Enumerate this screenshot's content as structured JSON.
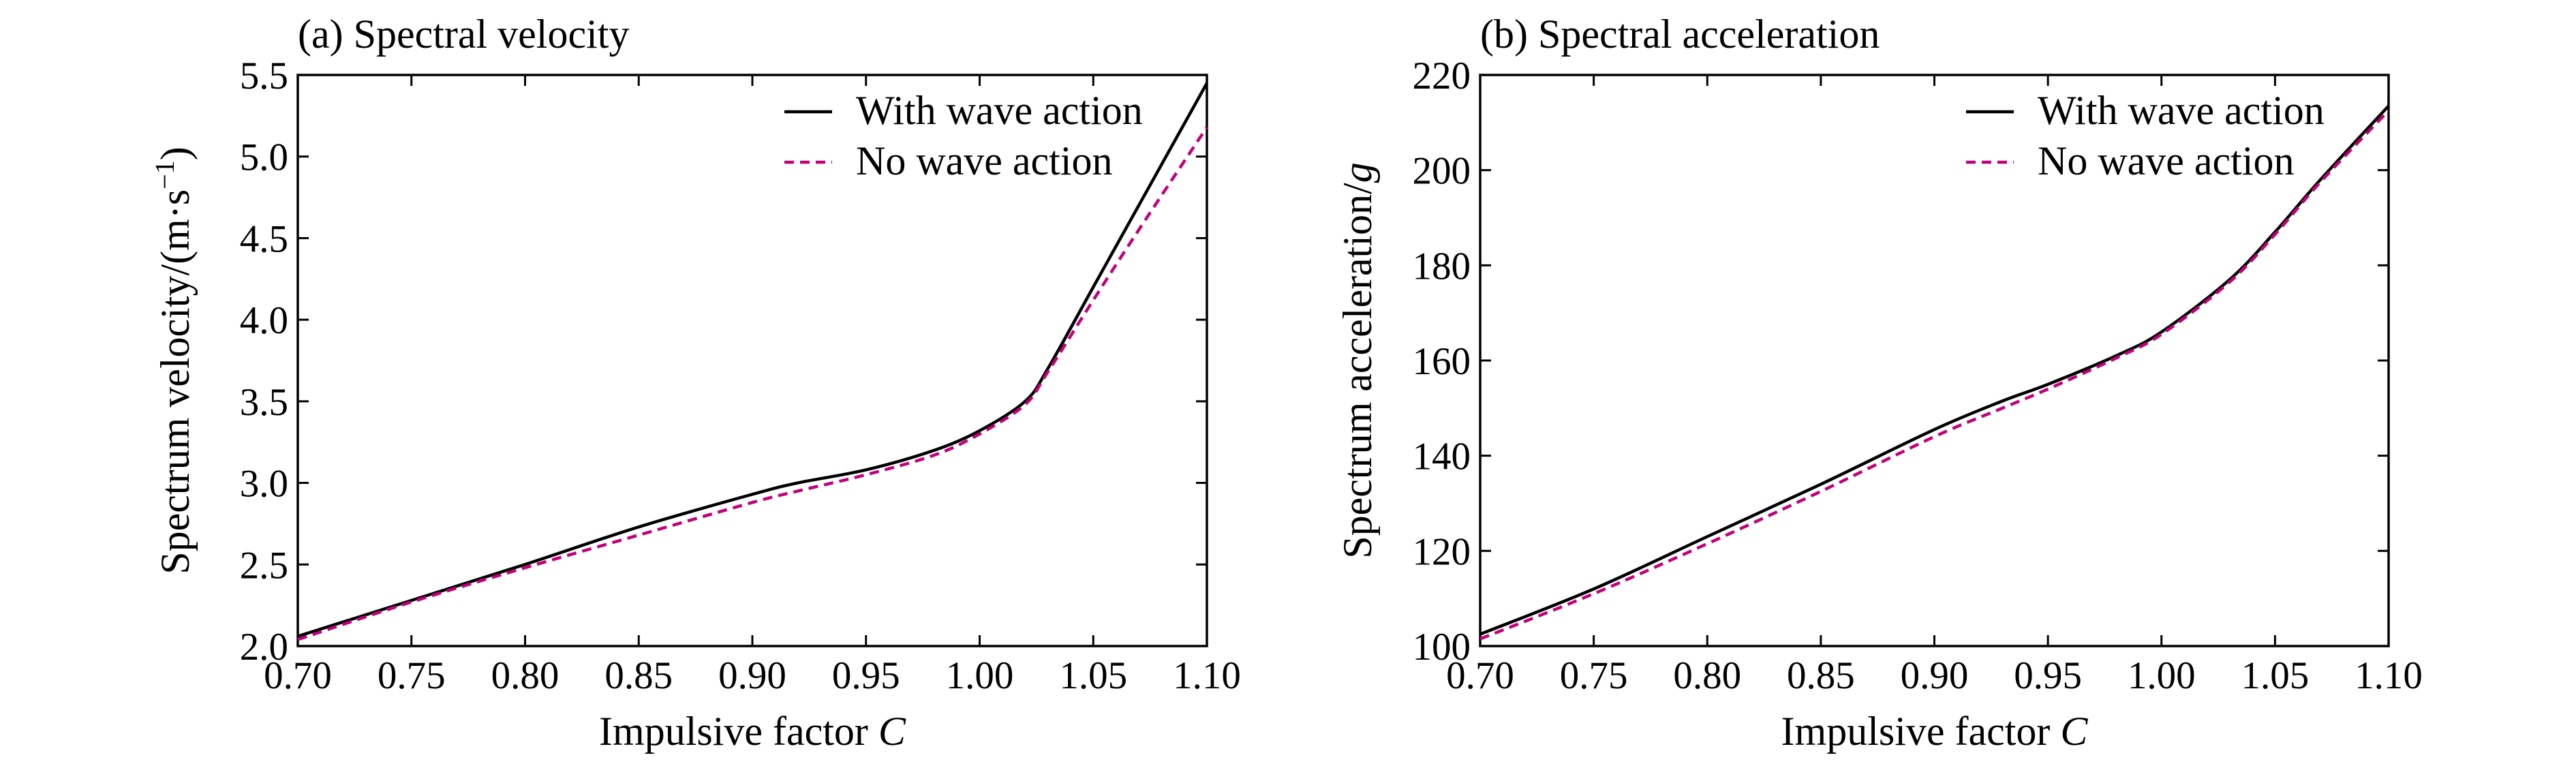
{
  "chart_data": [
    {
      "type": "line",
      "title": "(a) Spectral velocity",
      "xlabel": "Impulsive factor",
      "xlabel_var": "C",
      "ylabel": "Spectrum velocity/(m·s",
      "ylabel_sup": "−1",
      "ylabel_end": ")",
      "xlim": [
        0.7,
        1.1
      ],
      "ylim": [
        2.0,
        5.5
      ],
      "xticks": [
        "0.70",
        "0.75",
        "0.80",
        "0.85",
        "0.90",
        "0.95",
        "1.00",
        "1.05",
        "1.10"
      ],
      "yticks": [
        "2.0",
        "2.5",
        "3.0",
        "3.5",
        "4.0",
        "4.5",
        "5.0",
        "5.5"
      ],
      "legend_position": "top-right",
      "grid": false,
      "series": [
        {
          "name": "With wave action",
          "color": "#000000",
          "dash": "solid",
          "x": [
            0.7,
            0.75,
            0.8,
            0.85,
            0.9,
            0.92,
            0.95,
            0.98,
            1.0,
            1.02,
            1.03,
            1.05,
            1.07,
            1.1
          ],
          "y": [
            2.06,
            2.28,
            2.5,
            2.73,
            2.93,
            3.0,
            3.08,
            3.2,
            3.32,
            3.5,
            3.7,
            4.2,
            4.7,
            5.45
          ]
        },
        {
          "name": "No wave action",
          "color": "#c2007a",
          "dash": "dashed",
          "x": [
            0.7,
            0.75,
            0.8,
            0.85,
            0.9,
            0.92,
            0.95,
            0.98,
            1.0,
            1.02,
            1.03,
            1.05,
            1.07,
            1.1
          ],
          "y": [
            2.04,
            2.27,
            2.48,
            2.68,
            2.88,
            2.95,
            3.05,
            3.17,
            3.3,
            3.48,
            3.68,
            4.12,
            4.55,
            5.18
          ]
        }
      ]
    },
    {
      "type": "line",
      "title": "(b) Spectral acceleration",
      "xlabel": "Impulsive factor",
      "xlabel_var": "C",
      "ylabel": "Spectrum acceleration/",
      "ylabel_var": "g",
      "xlim": [
        0.7,
        1.1
      ],
      "ylim": [
        100,
        220
      ],
      "xticks": [
        "0.70",
        "0.75",
        "0.80",
        "0.85",
        "0.90",
        "0.95",
        "1.00",
        "1.05",
        "1.10"
      ],
      "yticks": [
        "100",
        "120",
        "140",
        "160",
        "180",
        "200",
        "220"
      ],
      "legend_position": "top-right",
      "grid": false,
      "series": [
        {
          "name": "With wave action",
          "color": "#000000",
          "dash": "solid",
          "x": [
            0.7,
            0.75,
            0.8,
            0.85,
            0.9,
            0.93,
            0.95,
            0.98,
            1.0,
            1.03,
            1.05,
            1.07,
            1.1
          ],
          "y": [
            102.5,
            112,
            123,
            134,
            145.5,
            151.5,
            155,
            161,
            166,
            177,
            187,
            198,
            213.5
          ]
        },
        {
          "name": "No wave action",
          "color": "#c2007a",
          "dash": "dashed",
          "x": [
            0.7,
            0.75,
            0.8,
            0.85,
            0.9,
            0.93,
            0.95,
            0.98,
            1.0,
            1.03,
            1.05,
            1.07,
            1.1
          ],
          "y": [
            101.5,
            111,
            121.5,
            132.5,
            144,
            150,
            154,
            160.5,
            165.5,
            176.5,
            186.5,
            197.5,
            212.5
          ]
        }
      ]
    }
  ]
}
